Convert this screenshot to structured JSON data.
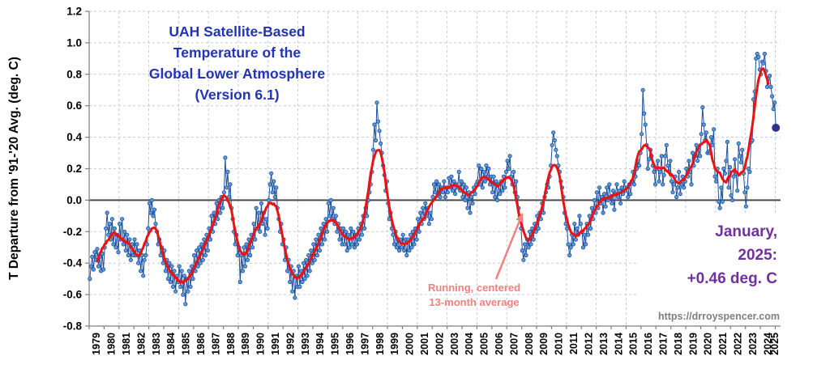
{
  "title": {
    "lines": [
      "UAH Satellite-Based",
      "Temperature of the",
      "Global Lower Atmosphere",
      "(Version 6.1)"
    ]
  },
  "annotation_avg": {
    "lines": [
      "Running, centered",
      "13-month average"
    ]
  },
  "latest_callout": {
    "lines": [
      "January,",
      "2025:",
      "+0.46 deg. C"
    ]
  },
  "watermark": {
    "text": "https://drroyspencer.com"
  },
  "colors": {
    "title_text": "#2234b3",
    "monthly_line": "#1f4e9f",
    "monthly_marker": "#5b9bd5",
    "average_line": "#ee1111",
    "annotation_text": "#f4807f",
    "latest_marker": "#2e3192",
    "callout_text": "#7030a0",
    "watermark_text": "#7f7f7f"
  },
  "chart_data": {
    "type": "line",
    "title": "UAH Satellite-Based Temperature of the Global Lower Atmosphere (Version 6.1)",
    "ylabel": "T Departure from '91-'20 Avg. (deg. C)",
    "ylim": [
      -0.8,
      1.2
    ],
    "ytick_step": 0.2,
    "y_tick_labels": [
      "1.2",
      "1.0",
      "0.8",
      "0.6",
      "0.4",
      "0.2",
      "0.0",
      "-0.2",
      "-0.4",
      "-0.6",
      "-0.8"
    ],
    "series": [
      {
        "name": "Monthly global lower-atmosphere temperature anomaly",
        "style": "line with circular markers"
      },
      {
        "name": "Running, centered 13-month average",
        "style": "thick red line",
        "derived": "13-month centered mean of monthly series"
      }
    ],
    "latest_point": {
      "label": "January 2025",
      "value": 0.46
    },
    "monthly_anomalies_by_year": {
      "1979": [
        -0.5,
        -0.42,
        -0.36,
        -0.44,
        -0.33,
        -0.38,
        -0.31,
        -0.42,
        -0.36,
        -0.45,
        -0.34,
        -0.44
      ],
      "1980": [
        -0.3,
        -0.18,
        -0.08,
        -0.22,
        -0.15,
        -0.25,
        -0.12,
        -0.28,
        -0.18,
        -0.3,
        -0.22,
        -0.33
      ],
      "1981": [
        -0.15,
        -0.25,
        -0.12,
        -0.28,
        -0.2,
        -0.32,
        -0.22,
        -0.35,
        -0.25,
        -0.38,
        -0.28,
        -0.35
      ],
      "1982": [
        -0.25,
        -0.35,
        -0.28,
        -0.4,
        -0.32,
        -0.45,
        -0.35,
        -0.48,
        -0.38,
        -0.35,
        -0.28,
        -0.18
      ],
      "1983": [
        -0.02,
        -0.08,
        0.0,
        -0.1,
        -0.06,
        -0.15,
        -0.2,
        -0.28,
        -0.25,
        -0.35,
        -0.3,
        -0.4
      ],
      "1984": [
        -0.32,
        -0.45,
        -0.38,
        -0.5,
        -0.4,
        -0.52,
        -0.42,
        -0.55,
        -0.45,
        -0.58,
        -0.48,
        -0.52
      ],
      "1985": [
        -0.42,
        -0.55,
        -0.45,
        -0.6,
        -0.48,
        -0.66,
        -0.5,
        -0.58,
        -0.45,
        -0.55,
        -0.42,
        -0.5
      ],
      "1986": [
        -0.35,
        -0.45,
        -0.32,
        -0.42,
        -0.3,
        -0.4,
        -0.28,
        -0.38,
        -0.25,
        -0.35,
        -0.22,
        -0.32
      ],
      "1987": [
        -0.18,
        -0.25,
        -0.1,
        -0.2,
        -0.08,
        -0.15,
        -0.02,
        -0.12,
        0.0,
        -0.08,
        0.02,
        -0.05
      ],
      "1988": [
        0.05,
        0.27,
        0.08,
        0.18,
        0.02,
        0.1,
        -0.05,
        -0.12,
        -0.2,
        -0.28,
        -0.22,
        -0.35
      ],
      "1989": [
        -0.3,
        -0.52,
        -0.35,
        -0.45,
        -0.3,
        -0.42,
        -0.28,
        -0.38,
        -0.25,
        -0.35,
        -0.22,
        -0.3
      ],
      "1990": [
        -0.15,
        -0.25,
        -0.05,
        -0.18,
        -0.08,
        -0.2,
        -0.02,
        -0.15,
        -0.08,
        -0.22,
        -0.12,
        -0.18
      ],
      "1991": [
        0.0,
        0.1,
        0.17,
        0.05,
        0.12,
        0.02,
        0.08,
        -0.05,
        -0.12,
        -0.2,
        -0.15,
        -0.28
      ],
      "1992": [
        -0.25,
        -0.38,
        -0.3,
        -0.45,
        -0.38,
        -0.52,
        -0.42,
        -0.58,
        -0.45,
        -0.62,
        -0.48,
        -0.55
      ],
      "1993": [
        -0.42,
        -0.55,
        -0.45,
        -0.52,
        -0.4,
        -0.5,
        -0.38,
        -0.48,
        -0.35,
        -0.45,
        -0.32,
        -0.4
      ],
      "1994": [
        -0.28,
        -0.38,
        -0.25,
        -0.35,
        -0.22,
        -0.32,
        -0.18,
        -0.28,
        -0.15,
        -0.25,
        -0.12,
        -0.2
      ],
      "1995": [
        -0.02,
        -0.1,
        0.0,
        -0.12,
        -0.05,
        -0.15,
        -0.1,
        -0.2,
        -0.15,
        -0.25,
        -0.18,
        -0.28
      ],
      "1996": [
        -0.18,
        -0.28,
        -0.2,
        -0.32,
        -0.22,
        -0.3,
        -0.18,
        -0.28,
        -0.2,
        -0.3,
        -0.22,
        -0.28
      ],
      "1997": [
        -0.18,
        -0.25,
        -0.15,
        -0.22,
        -0.1,
        -0.18,
        -0.05,
        -0.1,
        0.0,
        0.05,
        0.1,
        0.18
      ],
      "1998": [
        0.32,
        0.48,
        0.38,
        0.62,
        0.5,
        0.44,
        0.36,
        0.3,
        0.22,
        0.16,
        0.06,
        0.12
      ],
      "1999": [
        -0.02,
        -0.12,
        -0.08,
        -0.18,
        -0.22,
        -0.28,
        -0.2,
        -0.3,
        -0.25,
        -0.32,
        -0.25,
        -0.3
      ],
      "2000": [
        -0.22,
        -0.32,
        -0.25,
        -0.35,
        -0.25,
        -0.32,
        -0.22,
        -0.3,
        -0.2,
        -0.28,
        -0.18,
        -0.25
      ],
      "2001": [
        -0.12,
        -0.2,
        -0.08,
        -0.15,
        -0.05,
        -0.12,
        -0.02,
        -0.1,
        -0.05,
        -0.15,
        -0.08,
        -0.12
      ],
      "2002": [
        0.02,
        0.1,
        0.05,
        0.12,
        0.03,
        0.1,
        0.02,
        0.08,
        0.05,
        0.12,
        0.02,
        0.08
      ],
      "2003": [
        0.05,
        0.14,
        0.08,
        0.15,
        0.06,
        0.12,
        0.04,
        0.1,
        0.08,
        0.18,
        0.06,
        0.12
      ],
      "2004": [
        0.02,
        0.1,
        0.0,
        0.08,
        -0.05,
        0.05,
        -0.08,
        0.02,
        -0.02,
        0.08,
        0.04,
        0.1
      ],
      "2005": [
        0.12,
        0.22,
        0.1,
        0.2,
        0.08,
        0.18,
        0.12,
        0.22,
        0.15,
        0.2,
        0.1,
        0.15
      ],
      "2006": [
        0.05,
        0.15,
        0.02,
        0.12,
        0.0,
        0.1,
        0.04,
        0.12,
        0.06,
        0.15,
        0.08,
        0.18
      ],
      "2007": [
        0.25,
        0.2,
        0.28,
        0.15,
        0.1,
        0.18,
        0.05,
        0.12,
        0.02,
        -0.05,
        -0.1,
        -0.18
      ],
      "2008": [
        -0.32,
        -0.38,
        -0.28,
        -0.35,
        -0.25,
        -0.3,
        -0.2,
        -0.28,
        -0.18,
        -0.25,
        -0.15,
        -0.2
      ],
      "2009": [
        -0.1,
        -0.18,
        -0.08,
        -0.12,
        -0.02,
        -0.08,
        0.02,
        0.05,
        0.1,
        0.08,
        0.15,
        0.22
      ],
      "2010": [
        0.35,
        0.43,
        0.38,
        0.32,
        0.28,
        0.22,
        0.18,
        0.12,
        0.08,
        0.02,
        -0.08,
        -0.15
      ],
      "2011": [
        -0.18,
        -0.28,
        -0.35,
        -0.3,
        -0.22,
        -0.28,
        -0.15,
        -0.25,
        -0.18,
        -0.22,
        -0.1,
        -0.15
      ],
      "2012": [
        -0.2,
        -0.3,
        -0.22,
        -0.28,
        -0.15,
        -0.22,
        -0.1,
        -0.18,
        -0.05,
        -0.12,
        0.0,
        -0.08
      ],
      "2013": [
        0.05,
        -0.05,
        0.08,
        -0.02,
        0.02,
        -0.08,
        0.04,
        -0.04,
        0.08,
        0.0,
        0.1,
        0.02
      ],
      "2014": [
        -0.02,
        0.06,
        -0.06,
        0.04,
        0.1,
        0.02,
        0.06,
        -0.02,
        0.08,
        0.04,
        0.12,
        0.06
      ],
      "2015": [
        0.08,
        0.02,
        0.1,
        0.04,
        0.12,
        0.18,
        0.1,
        0.15,
        0.2,
        0.25,
        0.22,
        0.3
      ],
      "2016": [
        0.42,
        0.7,
        0.55,
        0.48,
        0.35,
        0.2,
        0.26,
        0.32,
        0.28,
        0.22,
        0.18,
        0.1
      ],
      "2017": [
        0.2,
        0.25,
        0.12,
        0.18,
        0.28,
        0.1,
        0.16,
        0.28,
        0.35,
        0.22,
        0.18,
        0.25
      ],
      "2018": [
        0.12,
        0.05,
        0.1,
        0.15,
        0.02,
        0.08,
        0.18,
        0.04,
        0.1,
        0.15,
        0.08,
        0.12
      ],
      "2019": [
        0.2,
        0.15,
        0.25,
        0.18,
        0.1,
        0.3,
        0.22,
        0.28,
        0.35,
        0.25,
        0.32,
        0.28
      ],
      "2020": [
        0.42,
        0.59,
        0.48,
        0.38,
        0.43,
        0.3,
        0.31,
        0.3,
        0.4,
        0.35,
        0.45,
        0.15
      ],
      "2021": [
        0.12,
        0.2,
        -0.01,
        -0.05,
        0.08,
        -0.01,
        0.2,
        0.17,
        0.25,
        0.37,
        0.08,
        0.21
      ],
      "2022": [
        0.03,
        0.0,
        0.15,
        0.26,
        0.17,
        0.06,
        0.36,
        0.28,
        0.24,
        0.32,
        0.17,
        0.05
      ],
      "2023": [
        -0.04,
        0.08,
        0.2,
        0.18,
        0.37,
        0.38,
        0.64,
        0.69,
        0.9,
        0.93,
        0.91,
        0.83
      ],
      "2024": [
        0.8,
        0.88,
        0.87,
        0.93,
        0.82,
        0.72,
        0.77,
        0.79,
        0.72,
        0.66,
        0.58,
        0.62
      ],
      "2025": [
        0.46
      ]
    }
  }
}
